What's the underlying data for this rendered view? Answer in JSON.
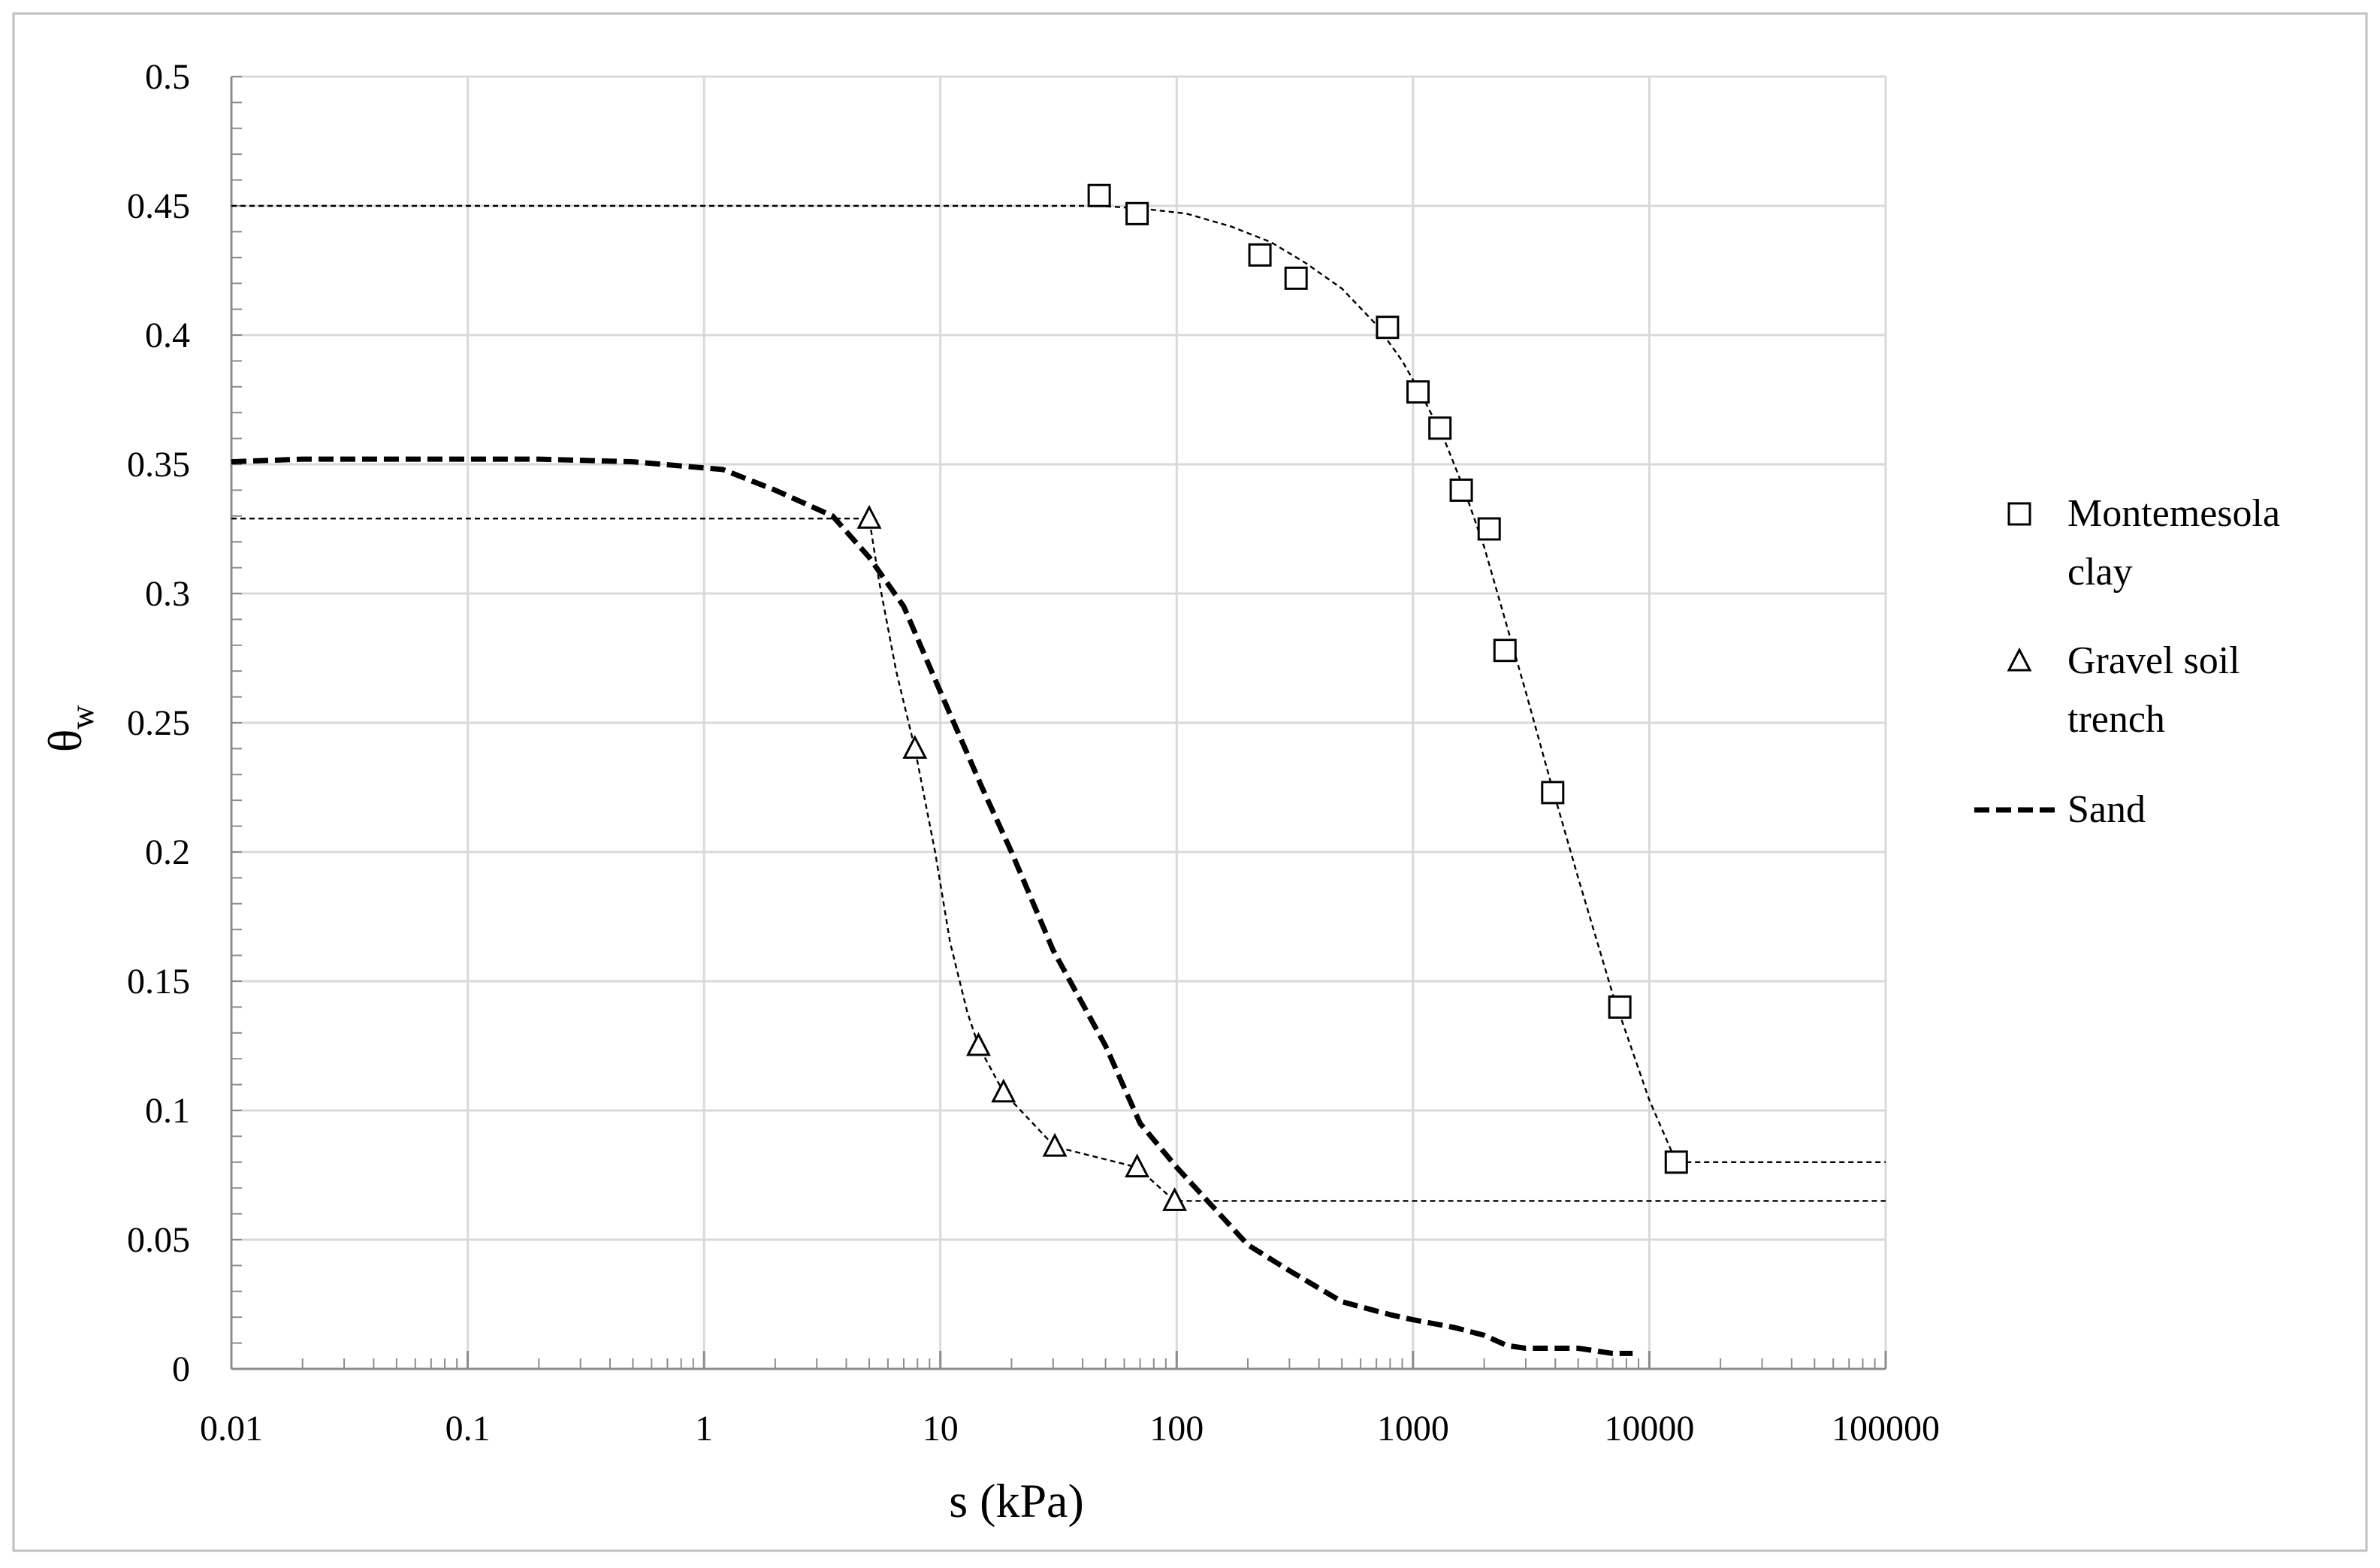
{
  "chart_data": {
    "type": "scatter",
    "title": "",
    "xlabel": "s (kPa)",
    "ylabel": {
      "main": "θ",
      "sub": "w"
    },
    "x_scale": "log",
    "xlim": [
      0.01,
      100000
    ],
    "ylim": [
      0,
      0.5
    ],
    "x_ticks": [
      "0.01",
      "0.1",
      "1",
      "10",
      "100",
      "1000",
      "10000",
      "100000"
    ],
    "y_ticks": [
      "0",
      "0.05",
      "0.1",
      "0.15",
      "0.2",
      "0.25",
      "0.3",
      "0.35",
      "0.4",
      "0.45",
      "0.5"
    ],
    "grid": true,
    "legend_position": "right",
    "colors": {
      "series": "#000000",
      "grid": "#d9d9d9",
      "frame": "#bfbfbf"
    },
    "series": [
      {
        "name": "Montemesola clay",
        "legend_lines": [
          "Montemesola",
          "clay"
        ],
        "marker": "square",
        "points": [
          [
            47,
            0.454
          ],
          [
            68,
            0.447
          ],
          [
            225,
            0.431
          ],
          [
            320,
            0.422
          ],
          [
            780,
            0.403
          ],
          [
            1050,
            0.378
          ],
          [
            1300,
            0.364
          ],
          [
            1600,
            0.34
          ],
          [
            2100,
            0.325
          ],
          [
            2450,
            0.278
          ],
          [
            3900,
            0.223
          ],
          [
            7500,
            0.14
          ],
          [
            13000,
            0.08
          ]
        ],
        "fit": [
          [
            0.01,
            0.45
          ],
          [
            20,
            0.45
          ],
          [
            47,
            0.45
          ],
          [
            70,
            0.449
          ],
          [
            110,
            0.447
          ],
          [
            170,
            0.442
          ],
          [
            250,
            0.436
          ],
          [
            350,
            0.428
          ],
          [
            500,
            0.418
          ],
          [
            700,
            0.404
          ],
          [
            900,
            0.39
          ],
          [
            1100,
            0.376
          ],
          [
            1350,
            0.36
          ],
          [
            1650,
            0.34
          ],
          [
            2000,
            0.318
          ],
          [
            2450,
            0.29
          ],
          [
            3000,
            0.262
          ],
          [
            3800,
            0.228
          ],
          [
            5000,
            0.19
          ],
          [
            7000,
            0.145
          ],
          [
            10000,
            0.104
          ],
          [
            13000,
            0.08
          ],
          [
            100000,
            0.08
          ]
        ]
      },
      {
        "name": "Gravel soil trench",
        "legend_lines": [
          "Gravel soil",
          "trench"
        ],
        "marker": "triangle",
        "points": [
          [
            5,
            0.329
          ],
          [
            7.8,
            0.24
          ],
          [
            14.5,
            0.125
          ],
          [
            18.5,
            0.107
          ],
          [
            30.5,
            0.086
          ],
          [
            68,
            0.078
          ],
          [
            98,
            0.065
          ]
        ],
        "fit": [
          [
            0.01,
            0.329
          ],
          [
            5,
            0.329
          ],
          [
            5.5,
            0.305
          ],
          [
            6.5,
            0.27
          ],
          [
            7.8,
            0.24
          ],
          [
            9.5,
            0.2
          ],
          [
            11,
            0.165
          ],
          [
            13,
            0.138
          ],
          [
            14.5,
            0.125
          ],
          [
            18.5,
            0.107
          ],
          [
            30.5,
            0.086
          ],
          [
            68,
            0.078
          ],
          [
            98,
            0.065
          ],
          [
            100000,
            0.065
          ]
        ]
      },
      {
        "name": "Sand",
        "legend_lines": [
          "Sand"
        ],
        "marker": "none",
        "line": "dashed-thick",
        "points": [
          [
            0.01,
            0.351
          ],
          [
            0.02,
            0.352
          ],
          [
            0.05,
            0.352
          ],
          [
            0.1,
            0.352
          ],
          [
            0.2,
            0.352
          ],
          [
            0.5,
            0.351
          ],
          [
            1.2,
            0.348
          ],
          [
            2,
            0.34
          ],
          [
            3.5,
            0.33
          ],
          [
            5,
            0.314
          ],
          [
            7,
            0.295
          ],
          [
            10,
            0.262
          ],
          [
            15,
            0.225
          ],
          [
            20,
            0.2
          ],
          [
            30,
            0.162
          ],
          [
            50,
            0.125
          ],
          [
            70,
            0.095
          ],
          [
            100,
            0.078
          ],
          [
            200,
            0.048
          ],
          [
            300,
            0.038
          ],
          [
            500,
            0.026
          ],
          [
            800,
            0.021
          ],
          [
            1000,
            0.019
          ],
          [
            1500,
            0.016
          ],
          [
            2000,
            0.013
          ],
          [
            2500,
            0.009
          ],
          [
            3000,
            0.008
          ],
          [
            5000,
            0.008
          ],
          [
            7000,
            0.006
          ],
          [
            8500,
            0.006
          ]
        ]
      }
    ]
  }
}
